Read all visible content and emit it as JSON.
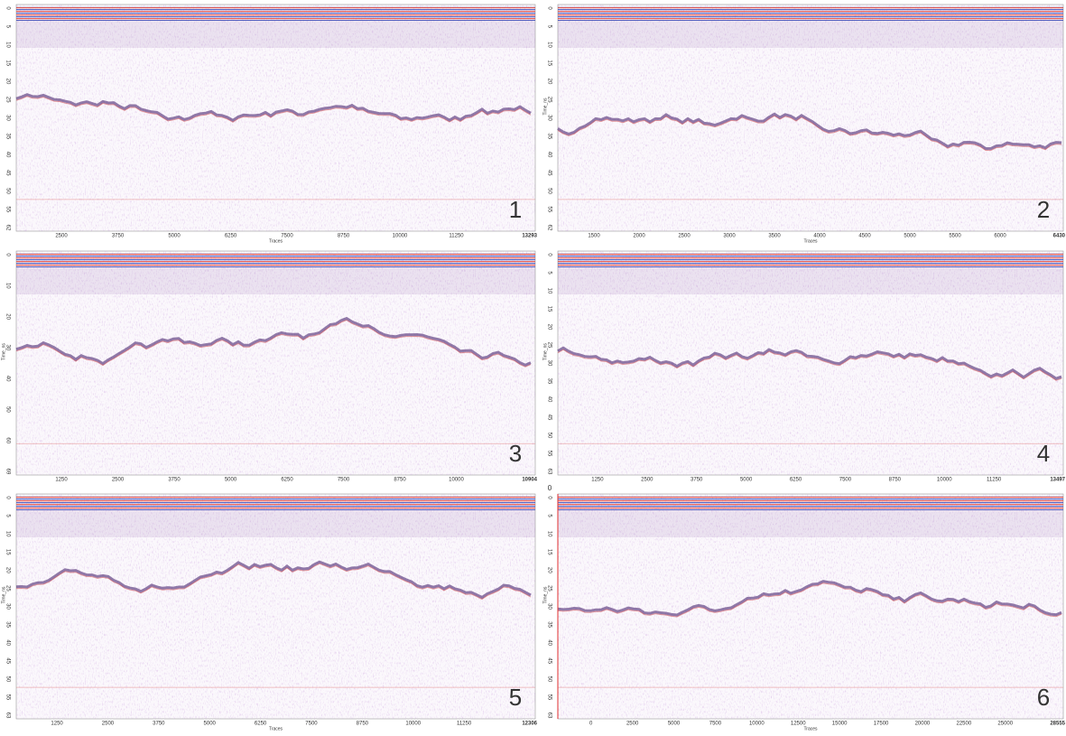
{
  "panels": [
    {
      "number": 1,
      "x_label": "Traces",
      "x_ticks": [
        2500,
        3750,
        5000,
        6250,
        7500,
        8750,
        10000,
        11250
      ],
      "x_end": 13293,
      "y_ticks": [
        0,
        5,
        10,
        15,
        20,
        25,
        30,
        35,
        40,
        45,
        50,
        55,
        62
      ]
    },
    {
      "number": 2,
      "x_label": "Traces",
      "y_label": "Time_ns",
      "x_ticks": [
        1500,
        2000,
        2500,
        3000,
        3500,
        4000,
        4500,
        5000,
        5500,
        6000
      ],
      "x_end": 6430,
      "y_ticks": [
        0,
        5,
        10,
        15,
        20,
        25,
        30,
        35,
        40,
        45,
        50,
        55,
        62
      ]
    },
    {
      "number": 3,
      "y_label": "Time_ns",
      "x_ticks": [
        1250,
        2500,
        3750,
        5000,
        6250,
        7500,
        8750,
        10000
      ],
      "x_end": 10904,
      "y_ticks": [
        0,
        10,
        20,
        30,
        40,
        50,
        60,
        69
      ]
    },
    {
      "number": 4,
      "y_label": "Time_ns",
      "x_ticks": [
        1250,
        2500,
        3750,
        5000,
        6250,
        7500,
        8750,
        10000,
        11250
      ],
      "x_end": 13497,
      "y_ticks": [
        0,
        5,
        10,
        15,
        20,
        25,
        30,
        35,
        40,
        45,
        50,
        55,
        63
      ]
    },
    {
      "number": 5,
      "x_label": "Traces",
      "y_label": "Time_ns",
      "x_ticks": [
        1250,
        2500,
        3750,
        5000,
        6250,
        7500,
        8750,
        10000,
        11250
      ],
      "x_end": 12306,
      "y_ticks": [
        0,
        5,
        10,
        15,
        20,
        25,
        30,
        35,
        40,
        45,
        50,
        55,
        63
      ]
    },
    {
      "number": 6,
      "marker": 0,
      "x_label": "Traces",
      "y_label": "Time_ns",
      "x_ticks": [
        0,
        2500,
        5000,
        7500,
        10000,
        12500,
        15000,
        17500,
        20000,
        22500,
        25000
      ],
      "x_end": 28555,
      "y_ticks": [
        0,
        5,
        10,
        15,
        20,
        25,
        30,
        35,
        40,
        45,
        50,
        55,
        63
      ]
    }
  ]
}
